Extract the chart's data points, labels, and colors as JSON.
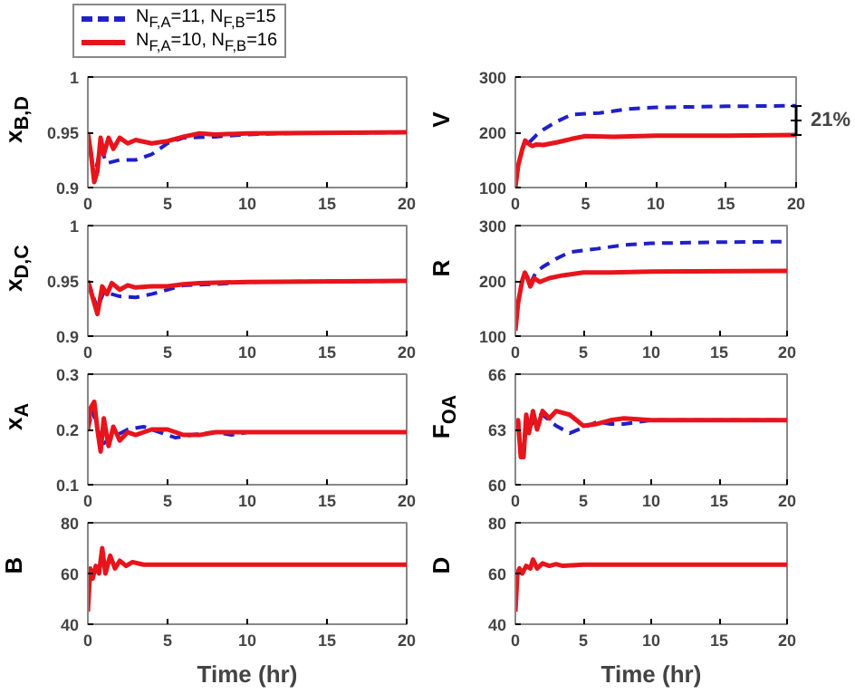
{
  "chart_data": [
    {
      "type": "line",
      "ylabel": "x$_{B,D}$",
      "legend": "top",
      "xlim": [
        0,
        20
      ],
      "xticks": [
        0,
        5,
        10,
        15,
        20
      ],
      "ylim": [
        0.9,
        1
      ],
      "yticks": [
        0.9,
        0.95,
        1
      ],
      "series": [
        {
          "name": "N$_{F,A}$=11, N$_{F,B}$=15",
          "color": "#2020c8",
          "line_style": "dashed",
          "x": [
            0,
            0.4,
            0.8,
            1.2,
            2,
            3,
            4,
            5,
            6,
            8,
            10,
            12,
            20
          ],
          "values": [
            0.95,
            0.91,
            0.935,
            0.922,
            0.925,
            0.925,
            0.93,
            0.94,
            0.945,
            0.946,
            0.948,
            0.949,
            0.95
          ]
        },
        {
          "name": "N$_{F,A}$=10, N$_{F,B}$=16",
          "color": "#e8141c",
          "line_style": "solid",
          "x": [
            0,
            0.2,
            0.4,
            0.6,
            0.8,
            1.0,
            1.3,
            1.6,
            2,
            2.5,
            3,
            4,
            5,
            6,
            7,
            8,
            10,
            20
          ],
          "values": [
            0.95,
            0.93,
            0.905,
            0.915,
            0.945,
            0.93,
            0.945,
            0.935,
            0.945,
            0.94,
            0.943,
            0.94,
            0.942,
            0.946,
            0.949,
            0.948,
            0.949,
            0.95
          ]
        }
      ]
    },
    {
      "type": "line",
      "ylabel": "V",
      "xlim": [
        0,
        20
      ],
      "xticks": [
        0,
        5,
        10,
        15,
        20
      ],
      "ylim": [
        100,
        300
      ],
      "yticks": [
        100,
        200,
        300
      ],
      "annotations": [
        "21%"
      ],
      "series": [
        {
          "color": "#2020c8",
          "line_style": "dashed",
          "x": [
            1.0,
            1.5,
            2,
            3,
            4,
            6,
            8,
            10,
            15,
            20
          ],
          "values": [
            182,
            195,
            205,
            220,
            232,
            235,
            242,
            245,
            247,
            248
          ]
        },
        {
          "color": "#e8141c",
          "line_style": "solid",
          "x": [
            0,
            0.2,
            0.5,
            0.7,
            0.9,
            1.2,
            1.5,
            2,
            3,
            4,
            5,
            7,
            10,
            15,
            20
          ],
          "values": [
            100,
            140,
            170,
            185,
            180,
            175,
            178,
            177,
            182,
            188,
            193,
            192,
            194,
            194,
            195
          ]
        }
      ]
    },
    {
      "type": "line",
      "ylabel": "x$_{D,C}$",
      "xlim": [
        0,
        20
      ],
      "xticks": [
        0,
        5,
        10,
        15,
        20
      ],
      "ylim": [
        0.9,
        1
      ],
      "yticks": [
        0.9,
        0.95,
        1
      ],
      "series": [
        {
          "color": "#2020c8",
          "line_style": "dashed",
          "x": [
            0,
            0.6,
            1,
            2,
            3,
            4,
            5,
            6,
            8,
            10,
            20
          ],
          "values": [
            0.95,
            0.925,
            0.94,
            0.936,
            0.935,
            0.938,
            0.942,
            0.946,
            0.947,
            0.949,
            0.95
          ]
        },
        {
          "color": "#e8141c",
          "line_style": "solid",
          "x": [
            0,
            0.3,
            0.6,
            0.9,
            1.2,
            1.5,
            2,
            2.5,
            3,
            4,
            5,
            6,
            7,
            10,
            20
          ],
          "values": [
            0.95,
            0.935,
            0.92,
            0.945,
            0.938,
            0.948,
            0.942,
            0.946,
            0.944,
            0.945,
            0.945,
            0.947,
            0.948,
            0.949,
            0.95
          ]
        }
      ]
    },
    {
      "type": "line",
      "ylabel": "R",
      "xlim": [
        0,
        20
      ],
      "xticks": [
        0,
        5,
        10,
        15,
        20
      ],
      "ylim": [
        100,
        300
      ],
      "yticks": [
        100,
        200,
        300
      ],
      "series": [
        {
          "color": "#2020c8",
          "line_style": "dashed",
          "x": [
            1.1,
            1.5,
            2,
            3,
            4,
            6,
            8,
            10,
            15,
            20
          ],
          "values": [
            195,
            215,
            225,
            240,
            252,
            258,
            265,
            268,
            270,
            271
          ]
        },
        {
          "color": "#e8141c",
          "line_style": "solid",
          "x": [
            0,
            0.2,
            0.5,
            0.7,
            0.9,
            1.1,
            1.4,
            1.8,
            2.5,
            3.5,
            5,
            7,
            10,
            20
          ],
          "values": [
            110,
            160,
            200,
            215,
            205,
            190,
            205,
            198,
            205,
            210,
            215,
            215,
            217,
            218
          ]
        }
      ]
    },
    {
      "type": "line",
      "ylabel": "x$_{A}$",
      "xlim": [
        0,
        20
      ],
      "xticks": [
        0,
        5,
        10,
        15,
        20
      ],
      "ylim": [
        0.1,
        0.3
      ],
      "yticks": [
        0.1,
        0.2,
        0.3
      ],
      "series": [
        {
          "color": "#2020c8",
          "line_style": "dashed",
          "x": [
            0,
            0.3,
            0.6,
            1,
            1.5,
            2.5,
            3.5,
            4.5,
            5.5,
            6.5,
            8,
            9,
            10,
            20
          ],
          "values": [
            0.2,
            0.235,
            0.2,
            0.175,
            0.185,
            0.2,
            0.205,
            0.195,
            0.185,
            0.19,
            0.195,
            0.19,
            0.195,
            0.195
          ]
        },
        {
          "color": "#e8141c",
          "line_style": "solid",
          "x": [
            0,
            0.2,
            0.4,
            0.6,
            0.8,
            1.0,
            1.3,
            1.6,
            2,
            2.5,
            3,
            4,
            5,
            6,
            7,
            8,
            10,
            20
          ],
          "values": [
            0.2,
            0.24,
            0.25,
            0.2,
            0.16,
            0.22,
            0.17,
            0.205,
            0.18,
            0.195,
            0.19,
            0.2,
            0.2,
            0.19,
            0.19,
            0.195,
            0.195,
            0.195
          ]
        }
      ]
    },
    {
      "type": "line",
      "ylabel": "F$_{OA}$",
      "xlim": [
        0,
        20
      ],
      "xticks": [
        0,
        5,
        10,
        15,
        20
      ],
      "ylim": [
        60,
        66
      ],
      "yticks": [
        60,
        63,
        66
      ],
      "series": [
        {
          "color": "#2020c8",
          "line_style": "dashed",
          "x": [
            1,
            1.5,
            2,
            3,
            4,
            5,
            6,
            7,
            8,
            9,
            10,
            20
          ],
          "values": [
            63,
            63.7,
            63.8,
            63.2,
            62.8,
            63.1,
            63.4,
            63.3,
            63.3,
            63.4,
            63.5,
            63.5
          ]
        },
        {
          "color": "#e8141c",
          "line_style": "solid",
          "x": [
            0,
            0.2,
            0.4,
            0.6,
            0.8,
            1.0,
            1.3,
            1.6,
            2,
            2.5,
            3,
            4,
            5,
            6,
            7,
            8,
            10,
            20
          ],
          "values": [
            63,
            63.5,
            61.5,
            61.5,
            63.8,
            62.8,
            64,
            63,
            64,
            63.6,
            64,
            63.8,
            63.2,
            63.3,
            63.5,
            63.6,
            63.5,
            63.5
          ]
        }
      ]
    },
    {
      "type": "line",
      "ylabel": "B",
      "xlabel": "Time (hr)",
      "xlim": [
        0,
        20
      ],
      "xticks": [
        0,
        5,
        10,
        15,
        20
      ],
      "ylim": [
        40,
        80
      ],
      "yticks": [
        40,
        60,
        80
      ],
      "series": [
        {
          "color": "#e8141c",
          "line_style": "solid",
          "x": [
            0,
            0.15,
            0.3,
            0.5,
            0.7,
            0.9,
            1.1,
            1.4,
            1.7,
            2,
            2.4,
            2.8,
            3.5,
            5,
            20
          ],
          "values": [
            45,
            62,
            58,
            63,
            60,
            70,
            60,
            67,
            62,
            65,
            63,
            64.5,
            63.5,
            63.5,
            63.5
          ]
        }
      ]
    },
    {
      "type": "line",
      "ylabel": "D",
      "xlabel": "Time (hr)",
      "xlim": [
        0,
        20
      ],
      "xticks": [
        0,
        5,
        10,
        15,
        20
      ],
      "ylim": [
        40,
        80
      ],
      "yticks": [
        40,
        60,
        80
      ],
      "series": [
        {
          "color": "#e8141c",
          "line_style": "solid",
          "x": [
            0,
            0.15,
            0.3,
            0.5,
            0.8,
            1.1,
            1.3,
            1.6,
            2,
            2.5,
            3,
            3.5,
            5,
            20
          ],
          "values": [
            45,
            60,
            62,
            60,
            63,
            62,
            65.5,
            62,
            64,
            63,
            63.7,
            63,
            63.5,
            63.5
          ]
        }
      ]
    }
  ]
}
